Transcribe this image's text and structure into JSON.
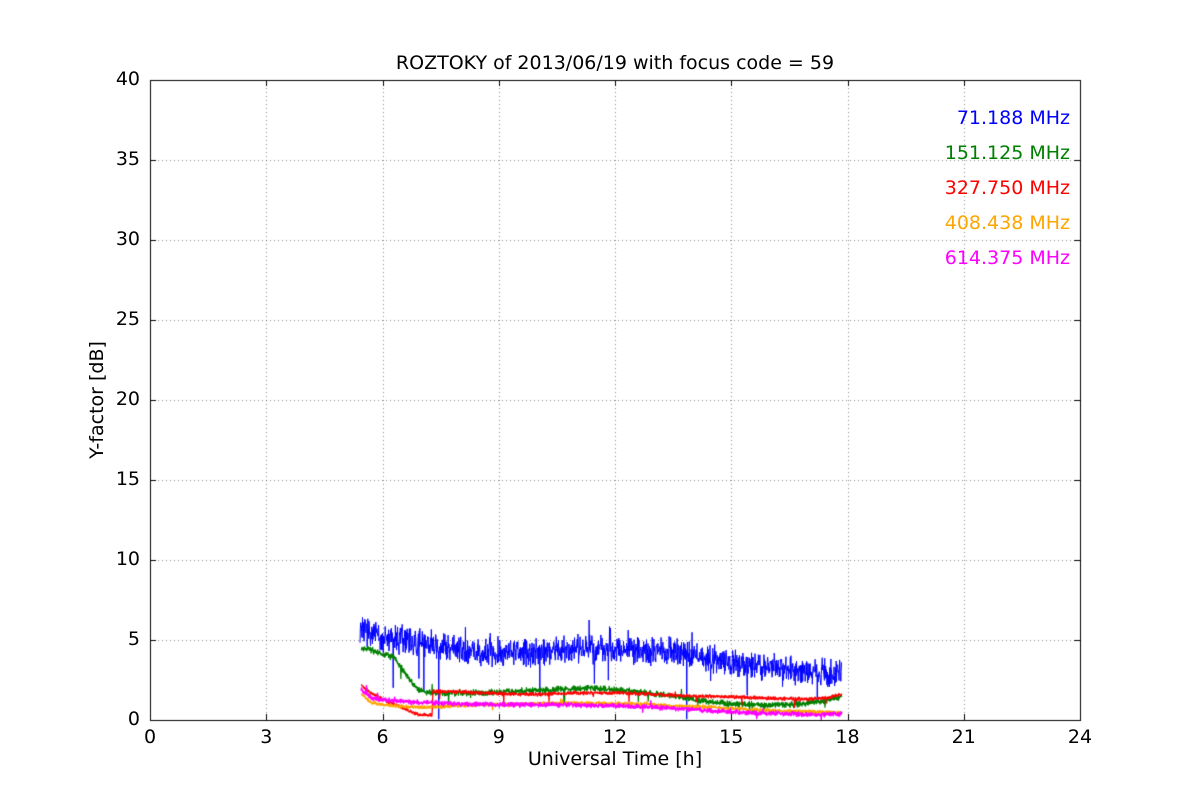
{
  "chart_data": {
    "type": "line",
    "title": "ROZTOKY of 2013/06/19 with focus code = 59",
    "xlabel": "Universal Time [h]",
    "ylabel": "Y-factor [dB]",
    "xlim": [
      0,
      24
    ],
    "ylim": [
      0,
      40
    ],
    "xticks": [
      0,
      3,
      6,
      9,
      12,
      15,
      18,
      21,
      24
    ],
    "yticks": [
      0,
      5,
      10,
      15,
      20,
      25,
      30,
      35,
      40
    ],
    "grid": true,
    "legend_position": "upper right",
    "data_x_range": [
      5.42,
      17.85
    ],
    "series": [
      {
        "name": "71.188 MHz",
        "color": "#0000ff",
        "line_width": 1.0,
        "noise_amplitude": 1.05,
        "spike_up": {
          "prob": 0.015,
          "amp": 1.0
        },
        "spike_down": {
          "prob": 0.008,
          "amp": 2.2
        },
        "dropouts": [
          {
            "x": 7.45,
            "y": 0.05
          },
          {
            "x": 13.85,
            "y": 0.05
          }
        ],
        "trend_points": [
          [
            5.42,
            5.8
          ],
          [
            5.6,
            5.6
          ],
          [
            6.0,
            5.2
          ],
          [
            6.5,
            5.0
          ],
          [
            7.0,
            4.8
          ],
          [
            8.0,
            4.4
          ],
          [
            9.0,
            4.2
          ],
          [
            10.0,
            4.3
          ],
          [
            11.0,
            4.4
          ],
          [
            12.0,
            4.4
          ],
          [
            13.0,
            4.3
          ],
          [
            13.6,
            4.3
          ],
          [
            14.0,
            4.0
          ],
          [
            15.0,
            3.6
          ],
          [
            16.0,
            3.3
          ],
          [
            17.0,
            3.1
          ],
          [
            17.6,
            2.9
          ],
          [
            17.85,
            3.0
          ]
        ]
      },
      {
        "name": "151.125 MHz",
        "color": "#008000",
        "line_width": 1.3,
        "noise_amplitude": 0.22,
        "spike_up": {
          "prob": 0.008,
          "amp": 0.5
        },
        "spike_down": {
          "prob": 0.008,
          "amp": 0.6
        },
        "dropouts": [],
        "trend_points": [
          [
            5.45,
            4.4
          ],
          [
            5.6,
            4.5
          ],
          [
            5.9,
            4.2
          ],
          [
            6.3,
            3.9
          ],
          [
            6.55,
            3.1
          ],
          [
            6.8,
            2.2
          ],
          [
            7.0,
            1.8
          ],
          [
            7.5,
            1.7
          ],
          [
            8.5,
            1.7
          ],
          [
            9.5,
            1.8
          ],
          [
            10.5,
            1.9
          ],
          [
            11.3,
            2.0
          ],
          [
            12.0,
            1.9
          ],
          [
            12.8,
            1.7
          ],
          [
            13.5,
            1.5
          ],
          [
            14.3,
            1.2
          ],
          [
            15.0,
            1.0
          ],
          [
            16.0,
            0.95
          ],
          [
            16.8,
            1.0
          ],
          [
            17.4,
            1.2
          ],
          [
            17.85,
            1.5
          ]
        ]
      },
      {
        "name": "327.750 MHz",
        "color": "#ff0000",
        "line_width": 1.3,
        "noise_amplitude": 0.13,
        "spike_up": {
          "prob": 0.004,
          "amp": 0.3
        },
        "spike_down": {
          "prob": 0.006,
          "amp": 0.4
        },
        "dropouts": [],
        "trend_points": [
          [
            5.45,
            2.2
          ],
          [
            5.7,
            1.7
          ],
          [
            6.0,
            1.3
          ],
          [
            6.4,
            0.9
          ],
          [
            6.8,
            0.45
          ],
          [
            7.05,
            0.3
          ],
          [
            7.28,
            0.3
          ],
          [
            7.3,
            1.8
          ],
          [
            8.0,
            1.75
          ],
          [
            9.0,
            1.65
          ],
          [
            10.0,
            1.6
          ],
          [
            11.0,
            1.7
          ],
          [
            12.0,
            1.7
          ],
          [
            13.0,
            1.6
          ],
          [
            14.0,
            1.5
          ],
          [
            15.0,
            1.45
          ],
          [
            16.0,
            1.35
          ],
          [
            17.0,
            1.3
          ],
          [
            17.5,
            1.4
          ],
          [
            17.85,
            1.6
          ]
        ]
      },
      {
        "name": "408.438 MHz",
        "color": "#ffa500",
        "line_width": 1.5,
        "noise_amplitude": 0.12,
        "spike_up": {
          "prob": 0.003,
          "amp": 0.25
        },
        "spike_down": {
          "prob": 0.003,
          "amp": 0.25
        },
        "dropouts": [],
        "trend_points": [
          [
            5.45,
            1.6
          ],
          [
            5.7,
            1.1
          ],
          [
            6.0,
            0.95
          ],
          [
            6.5,
            0.85
          ],
          [
            7.0,
            0.8
          ],
          [
            7.5,
            0.85
          ],
          [
            8.5,
            0.95
          ],
          [
            9.5,
            1.0
          ],
          [
            10.5,
            1.05
          ],
          [
            11.5,
            1.05
          ],
          [
            12.5,
            1.0
          ],
          [
            13.5,
            0.9
          ],
          [
            14.5,
            0.8
          ],
          [
            15.5,
            0.65
          ],
          [
            16.5,
            0.55
          ],
          [
            17.3,
            0.5
          ],
          [
            17.85,
            0.45
          ]
        ]
      },
      {
        "name": "614.375 MHz",
        "color": "#ff00ff",
        "line_width": 1.5,
        "noise_amplitude": 0.17,
        "spike_up": {
          "prob": 0.004,
          "amp": 0.3
        },
        "spike_down": {
          "prob": 0.005,
          "amp": 0.3
        },
        "dropouts": [],
        "trend_points": [
          [
            5.45,
            1.9
          ],
          [
            5.7,
            1.4
          ],
          [
            6.0,
            1.25
          ],
          [
            6.5,
            1.15
          ],
          [
            7.0,
            1.1
          ],
          [
            8.0,
            1.0
          ],
          [
            9.0,
            0.95
          ],
          [
            10.0,
            0.95
          ],
          [
            11.0,
            0.95
          ],
          [
            12.0,
            0.9
          ],
          [
            13.0,
            0.8
          ],
          [
            13.8,
            0.7
          ],
          [
            14.5,
            0.58
          ],
          [
            15.5,
            0.45
          ],
          [
            16.5,
            0.38
          ],
          [
            17.2,
            0.32
          ],
          [
            17.6,
            0.35
          ],
          [
            17.85,
            0.42
          ]
        ]
      }
    ]
  }
}
